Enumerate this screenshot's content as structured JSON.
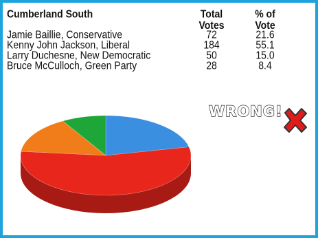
{
  "table": {
    "title": "Cumberland South",
    "col_votes": [
      "Total",
      "Votes"
    ],
    "col_pct": [
      "% of",
      "Vote"
    ],
    "rows": [
      {
        "name": "Jamie Baillie, Conservative",
        "votes": "72",
        "pct": "21.6"
      },
      {
        "name": "Kenny John Jackson, Liberal",
        "votes": "184",
        "pct": "55.1"
      },
      {
        "name": "Larry Duchesne, New Democratic",
        "votes": "50",
        "pct": "15.0"
      },
      {
        "name": "Bruce McCulloch, Green Party",
        "votes": "28",
        "pct": "8.4"
      }
    ]
  },
  "stamp": {
    "text": "WRONG!",
    "icon": "red-x-icon"
  },
  "chart_data": {
    "type": "pie",
    "style": "3d",
    "slices": [
      {
        "label": "Jamie Baillie, Conservative",
        "value": 21.6,
        "color": "#3a8fe0"
      },
      {
        "label": "Kenny John Jackson, Liberal",
        "value": 55.1,
        "color": "#e8261c"
      },
      {
        "label": "Larry Duchesne, New Democratic",
        "value": 15.0,
        "color": "#f07d1a"
      },
      {
        "label": "Bruce McCulloch, Green Party",
        "value": 8.4,
        "color": "#1fa638"
      }
    ]
  },
  "colors": {
    "border": "#1fa3dc",
    "x_mark": "#e01b1b"
  }
}
